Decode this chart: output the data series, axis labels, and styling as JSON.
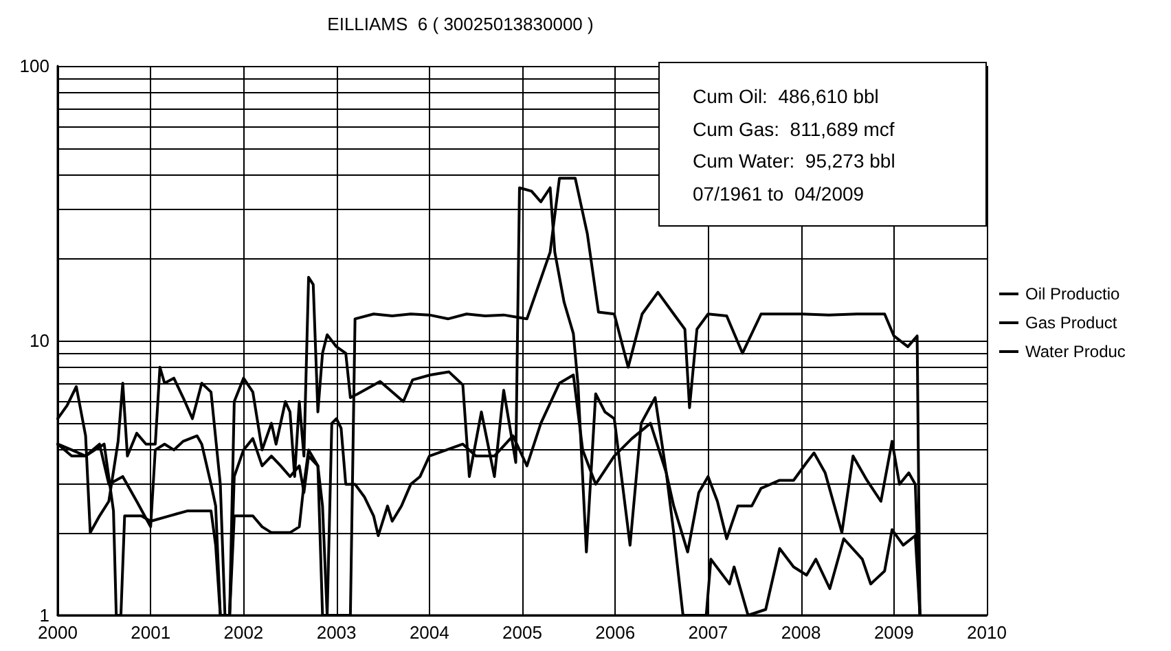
{
  "chart_data": {
    "type": "line",
    "title": "EILLIAMS  6 ( 30025013830000 )",
    "annotations": [
      "Cum Oil:  486,610 bbl",
      "Cum Gas:  811,689 mcf",
      "Cum Water:  95,273 bbl",
      "07/1961 to  04/2009"
    ],
    "xlim": [
      2000,
      2010
    ],
    "xticks": [
      2000,
      2001,
      2002,
      2003,
      2004,
      2005,
      2006,
      2007,
      2008,
      2009,
      2010
    ],
    "ylim": [
      1,
      100
    ],
    "log": true,
    "yticks": [
      1,
      {
        "value": 2,
        "label": null
      },
      {
        "value": 3,
        "label": null
      },
      {
        "value": 4,
        "label": null
      },
      {
        "value": 5,
        "label": null
      },
      {
        "value": 6,
        "label": null
      },
      {
        "value": 7,
        "label": null
      },
      {
        "value": 8,
        "label": null
      },
      {
        "value": 9,
        "label": null
      },
      10,
      {
        "value": 20,
        "label": null
      },
      {
        "value": 30,
        "label": null
      },
      {
        "value": 40,
        "label": null
      },
      {
        "value": 50,
        "label": null
      },
      {
        "value": 60,
        "label": null
      },
      {
        "value": 70,
        "label": null
      },
      {
        "value": 80,
        "label": null
      },
      {
        "value": 90,
        "label": null
      },
      100
    ],
    "grid": true,
    "legend": "right",
    "marker": "none",
    "line_style": "solid",
    "series": [
      {
        "name": "Oil Productio",
        "color": "#000000",
        "x": [
          2000.0,
          2000.15,
          2000.3,
          2000.4,
          2000.5,
          2000.6,
          2000.63,
          2000.68,
          2000.72,
          2000.9,
          2001.0,
          2001.2,
          2001.4,
          2001.65,
          2001.7,
          2001.75,
          2001.85,
          2001.9,
          2002.1,
          2002.2,
          2002.3,
          2002.5,
          2002.6,
          2002.65,
          2002.7,
          2002.8,
          2002.85,
          2002.9,
          2003.0,
          2003.1,
          2003.15,
          2003.2,
          2003.4,
          2003.6,
          2003.8,
          2004.0,
          2004.2,
          2004.4,
          2004.6,
          2004.8,
          2005.05,
          2005.3,
          2005.4,
          2005.57,
          2005.7,
          2005.82,
          2005.99,
          2006.14,
          2006.29,
          2006.46,
          2006.63,
          2006.75,
          2006.8,
          2006.88,
          2007.0,
          2007.2,
          2007.37,
          2007.57,
          2008.01,
          2008.3,
          2008.6,
          2008.9,
          2009.0,
          2009.15,
          2009.25,
          2009.28
        ],
        "values": [
          4.2,
          4.0,
          3.8,
          4.0,
          4.2,
          2.4,
          1.0,
          1.0,
          2.3,
          2.3,
          2.2,
          2.3,
          2.4,
          2.4,
          1.8,
          1.0,
          1.0,
          2.3,
          2.3,
          2.1,
          2.0,
          2.0,
          2.1,
          3.0,
          4.0,
          3.5,
          2.5,
          1.0,
          1.0,
          1.0,
          1.0,
          12.0,
          12.5,
          12.3,
          12.5,
          12.4,
          12.0,
          12.5,
          12.3,
          12.4,
          12.0,
          21,
          39,
          39,
          24.5,
          12.7,
          12.5,
          8.0,
          12.5,
          15,
          12.5,
          11,
          5.7,
          11,
          12.5,
          12.3,
          9.0,
          12.5,
          12.5,
          12.4,
          12.5,
          12.5,
          10.4,
          9.5,
          10.4,
          1.0
        ]
      },
      {
        "name": "Gas Product",
        "color": "#000000",
        "x": [
          2000.0,
          2000.1,
          2000.2,
          2000.3,
          2000.35,
          2000.45,
          2000.55,
          2000.65,
          2000.7,
          2000.75,
          2000.85,
          2000.95,
          2001.05,
          2001.1,
          2001.15,
          2001.25,
          2001.35,
          2001.45,
          2001.55,
          2001.65,
          2001.75,
          2001.8,
          2001.85,
          2001.9,
          2002.0,
          2002.1,
          2002.2,
          2002.3,
          2002.35,
          2002.45,
          2002.5,
          2002.55,
          2002.6,
          2002.65,
          2002.7,
          2002.75,
          2002.8,
          2002.85,
          2002.9,
          2003.0,
          2003.1,
          2003.15,
          2003.23,
          2003.47,
          2003.72,
          2003.82,
          2004.01,
          2004.21,
          2004.36,
          2004.43,
          2004.56,
          2004.7,
          2004.8,
          2004.93,
          2004.97,
          2005.1,
          2005.2,
          2005.3,
          2005.35,
          2005.45,
          2005.55,
          2005.6,
          2005.69,
          2005.79,
          2005.89,
          2005.99,
          2006.16,
          2006.28,
          2006.43,
          2006.55,
          2006.63,
          2006.73,
          2006.98,
          2007.03,
          2007.23,
          2007.28,
          2007.43,
          2007.62,
          2007.77,
          2007.92,
          2008.06,
          2008.16,
          2008.31,
          2008.46,
          2008.66,
          2008.75,
          2008.9,
          2008.98,
          2009.1,
          2009.23,
          2009.28
        ],
        "values": [
          5.2,
          5.8,
          6.8,
          4.5,
          2.0,
          2.3,
          2.6,
          4.3,
          7.0,
          3.8,
          4.6,
          4.2,
          4.2,
          8.0,
          7.0,
          7.3,
          6.2,
          5.2,
          7.0,
          6.5,
          3.0,
          1.0,
          1.0,
          6.0,
          7.3,
          6.5,
          4.0,
          5.0,
          4.2,
          6.0,
          5.5,
          3.2,
          6.0,
          3.8,
          17,
          16,
          5.5,
          9,
          10.5,
          9.5,
          9.0,
          6.2,
          6.4,
          7.1,
          6.0,
          7.2,
          7.5,
          7.7,
          6.9,
          3.2,
          5.5,
          3.2,
          6.6,
          3.6,
          36,
          35,
          32,
          36,
          21,
          13.8,
          10.6,
          6.9,
          1.7,
          6.4,
          5.5,
          5.2,
          1.8,
          5.0,
          6.2,
          3.3,
          2.0,
          1.0,
          1.0,
          1.6,
          1.3,
          1.5,
          1.0,
          1.05,
          1.75,
          1.5,
          1.4,
          1.6,
          1.25,
          1.9,
          1.6,
          1.3,
          1.45,
          2.05,
          1.8,
          1.95,
          1.0
        ]
      },
      {
        "name": "Water Produc",
        "color": "#000000",
        "x": [
          2000.0,
          2000.15,
          2000.3,
          2000.45,
          2000.55,
          2000.7,
          2000.85,
          2001.0,
          2001.05,
          2001.15,
          2001.25,
          2001.35,
          2001.5,
          2001.55,
          2001.65,
          2001.7,
          2001.75,
          2001.85,
          2001.9,
          2002.0,
          2002.1,
          2002.2,
          2002.3,
          2002.4,
          2002.5,
          2002.6,
          2002.65,
          2002.7,
          2002.8,
          2002.85,
          2002.9,
          2002.95,
          2003.0,
          2003.05,
          2003.1,
          2003.2,
          2003.3,
          2003.4,
          2003.45,
          2003.55,
          2003.6,
          2003.7,
          2003.8,
          2003.9,
          2004.0,
          2004.36,
          2004.5,
          2004.7,
          2004.9,
          2005.05,
          2005.2,
          2005.4,
          2005.55,
          2005.65,
          2005.79,
          2005.99,
          2006.18,
          2006.38,
          2006.55,
          2006.63,
          2006.78,
          2006.9,
          2007.0,
          2007.1,
          2007.2,
          2007.32,
          2007.47,
          2007.57,
          2007.77,
          2007.92,
          2008.06,
          2008.14,
          2008.26,
          2008.44,
          2008.56,
          2008.71,
          2008.86,
          2008.98,
          2009.06,
          2009.16,
          2009.23,
          2009.28
        ],
        "values": [
          4.2,
          3.8,
          3.8,
          4.2,
          3.0,
          3.2,
          2.6,
          2.1,
          4.0,
          4.2,
          4.0,
          4.3,
          4.5,
          4.2,
          3.0,
          2.5,
          1.0,
          1.0,
          3.2,
          4.0,
          4.4,
          3.5,
          3.8,
          3.5,
          3.2,
          3.5,
          2.8,
          3.8,
          3.5,
          1.0,
          1.0,
          5.0,
          5.2,
          4.8,
          3.0,
          3.0,
          2.7,
          2.3,
          1.95,
          2.5,
          2.2,
          2.5,
          3.0,
          3.2,
          3.8,
          4.2,
          3.8,
          3.8,
          4.5,
          3.5,
          5.0,
          7.0,
          7.5,
          4.0,
          3.0,
          3.8,
          4.4,
          5.0,
          3.3,
          2.5,
          1.7,
          2.8,
          3.2,
          2.6,
          1.9,
          2.5,
          2.5,
          2.9,
          3.1,
          3.1,
          3.6,
          3.9,
          3.3,
          2.0,
          3.8,
          3.1,
          2.6,
          4.3,
          3.0,
          3.3,
          3.0,
          1.0
        ]
      }
    ]
  }
}
